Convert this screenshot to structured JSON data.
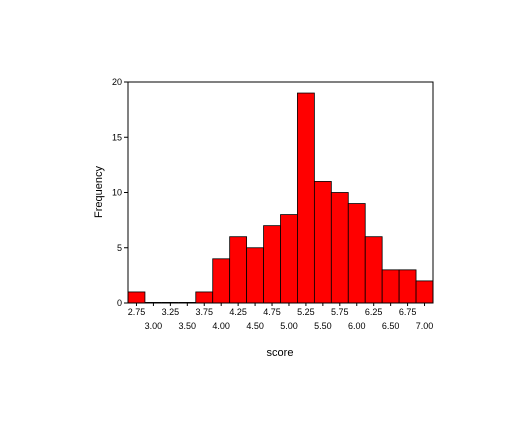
{
  "chart_data": {
    "type": "bar",
    "title": "",
    "xlabel": "score",
    "ylabel": "Frequency",
    "bin_width": 0.25,
    "x_range": [
      2.625,
      7.125
    ],
    "ylim": [
      0,
      20
    ],
    "y_ticks": [
      0,
      5,
      10,
      15,
      20
    ],
    "x_ticks_upper": [
      2.75,
      3.25,
      3.75,
      4.25,
      4.75,
      5.25,
      5.75,
      6.25,
      6.75
    ],
    "x_ticks_lower": [
      3.0,
      3.5,
      4.0,
      4.5,
      5.0,
      5.5,
      6.0,
      6.5,
      7.0
    ],
    "x_tick_labels_upper": [
      "2.75",
      "3.25",
      "3.75",
      "4.25",
      "4.75",
      "5.25",
      "5.75",
      "6.25",
      "6.75"
    ],
    "x_tick_labels_lower": [
      "3.00",
      "3.50",
      "4.00",
      "4.50",
      "5.00",
      "5.50",
      "6.00",
      "6.50",
      "7.00"
    ],
    "y_tick_labels": [
      "0",
      "5",
      "10",
      "15",
      "20"
    ],
    "bins": [
      2.75,
      3.0,
      3.25,
      3.5,
      3.75,
      4.0,
      4.25,
      4.5,
      4.75,
      5.0,
      5.25,
      5.5,
      5.75,
      6.0,
      6.25,
      6.5,
      6.75,
      7.0
    ],
    "values": [
      1,
      0,
      0,
      0,
      1,
      4,
      6,
      5,
      7,
      8,
      19,
      11,
      10,
      9,
      6,
      3,
      3,
      2
    ],
    "bar_color": "#ff0000",
    "grid": false
  }
}
